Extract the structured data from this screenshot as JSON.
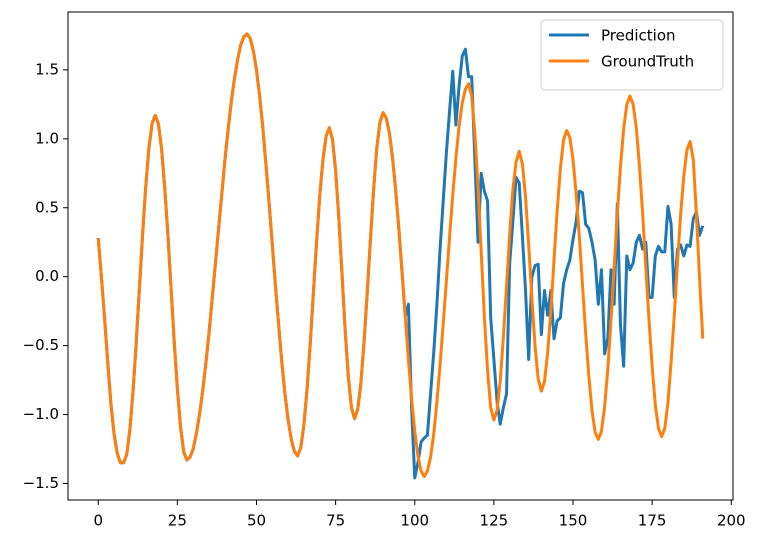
{
  "chart_data": {
    "type": "line",
    "x": [
      0,
      1,
      2,
      3,
      4,
      5,
      6,
      7,
      8,
      9,
      10,
      11,
      12,
      13,
      14,
      15,
      16,
      17,
      18,
      19,
      20,
      21,
      22,
      23,
      24,
      25,
      26,
      27,
      28,
      29,
      30,
      31,
      32,
      33,
      34,
      35,
      36,
      37,
      38,
      39,
      40,
      41,
      42,
      43,
      44,
      45,
      46,
      47,
      48,
      49,
      50,
      51,
      52,
      53,
      54,
      55,
      56,
      57,
      58,
      59,
      60,
      61,
      62,
      63,
      64,
      65,
      66,
      67,
      68,
      69,
      70,
      71,
      72,
      73,
      74,
      75,
      76,
      77,
      78,
      79,
      80,
      81,
      82,
      83,
      84,
      85,
      86,
      87,
      88,
      89,
      90,
      91,
      92,
      93,
      94,
      95,
      96,
      97,
      98,
      99,
      100,
      101,
      102,
      103,
      104,
      105,
      106,
      107,
      108,
      109,
      110,
      111,
      112,
      113,
      114,
      115,
      116,
      117,
      118,
      119,
      120,
      121,
      122,
      123,
      124,
      125,
      126,
      127,
      128,
      129,
      130,
      131,
      132,
      133,
      134,
      135,
      136,
      137,
      138,
      139,
      140,
      141,
      142,
      143,
      144,
      145,
      146,
      147,
      148,
      149,
      150,
      151,
      152,
      153,
      154,
      155,
      156,
      157,
      158,
      159,
      160,
      161,
      162,
      163,
      164,
      165,
      166,
      167,
      168,
      169,
      170,
      171,
      172,
      173,
      174,
      175,
      176,
      177,
      178,
      179,
      180,
      181,
      182,
      183,
      184,
      185,
      186,
      187,
      188,
      189,
      190,
      191
    ],
    "series": [
      {
        "name": "Prediction",
        "color": "#1f77b4",
        "values": [
          0.28,
          0.0,
          -0.3,
          -0.62,
          -0.92,
          -1.14,
          -1.28,
          -1.35,
          -1.35,
          -1.29,
          -1.11,
          -0.83,
          -0.48,
          -0.09,
          0.3,
          0.65,
          0.93,
          1.11,
          1.17,
          1.11,
          0.93,
          0.65,
          0.31,
          -0.08,
          -0.47,
          -0.81,
          -1.09,
          -1.27,
          -1.33,
          -1.31,
          -1.25,
          -1.14,
          -1.0,
          -0.83,
          -0.63,
          -0.41,
          -0.16,
          0.09,
          0.34,
          0.59,
          0.84,
          1.06,
          1.26,
          1.43,
          1.57,
          1.68,
          1.74,
          1.76,
          1.73,
          1.64,
          1.5,
          1.31,
          1.08,
          0.81,
          0.53,
          0.23,
          -0.07,
          -0.35,
          -0.62,
          -0.85,
          -1.04,
          -1.18,
          -1.27,
          -1.3,
          -1.24,
          -1.07,
          -0.81,
          -0.48,
          -0.11,
          0.26,
          0.59,
          0.85,
          1.02,
          1.08,
          1.0,
          0.77,
          0.43,
          0.03,
          -0.38,
          -0.72,
          -0.95,
          -1.03,
          -0.96,
          -0.77,
          -0.47,
          -0.11,
          0.27,
          0.63,
          0.93,
          1.12,
          1.19,
          1.15,
          1.04,
          0.86,
          0.62,
          0.34,
          0.03,
          -0.29,
          -0.2,
          -0.95,
          -1.46,
          -1.35,
          -1.2,
          -1.17,
          -1.15,
          -0.85,
          -0.55,
          -0.2,
          0.2,
          0.55,
          0.9,
          1.2,
          1.49,
          1.1,
          1.38,
          1.6,
          1.65,
          1.45,
          1.45,
          0.85,
          0.25,
          0.75,
          0.62,
          0.55,
          -0.3,
          -0.6,
          -0.9,
          -1.07,
          -0.95,
          -0.85,
          0.1,
          0.4,
          0.72,
          0.68,
          0.3,
          -0.1,
          -0.6,
          0,
          0.08,
          0.09,
          -0.42,
          -0.1,
          -0.28,
          -0.1,
          -0.45,
          -0.32,
          -0.3,
          -0.05,
          0.05,
          0.12,
          0.27,
          0.4,
          0.62,
          0.61,
          0.38,
          0.35,
          0.25,
          0.12,
          -0.2,
          0.05,
          -0.56,
          -0.45,
          0.05,
          -0.2,
          0.53,
          -0.35,
          -0.65,
          0.15,
          0.05,
          0.1,
          0.25,
          0.3,
          0.2,
          0.25,
          -0.15,
          -0.15,
          0.15,
          0.22,
          0.18,
          0.18,
          0.51,
          0.38,
          -0.15,
          0.2,
          0.23,
          0.15,
          0.23,
          0.22,
          0.42,
          0.47,
          0.3,
          0.37
        ]
      },
      {
        "name": "GroundTruth",
        "color": "#ff7f0e",
        "values": [
          0.28,
          0.0,
          -0.3,
          -0.62,
          -0.92,
          -1.14,
          -1.28,
          -1.35,
          -1.35,
          -1.29,
          -1.11,
          -0.83,
          -0.48,
          -0.09,
          0.3,
          0.65,
          0.93,
          1.11,
          1.17,
          1.11,
          0.93,
          0.65,
          0.31,
          -0.08,
          -0.47,
          -0.81,
          -1.09,
          -1.27,
          -1.33,
          -1.31,
          -1.25,
          -1.14,
          -1.0,
          -0.83,
          -0.63,
          -0.41,
          -0.16,
          0.09,
          0.34,
          0.59,
          0.84,
          1.06,
          1.26,
          1.43,
          1.57,
          1.68,
          1.74,
          1.76,
          1.73,
          1.64,
          1.5,
          1.31,
          1.08,
          0.81,
          0.53,
          0.23,
          -0.07,
          -0.35,
          -0.62,
          -0.85,
          -1.04,
          -1.18,
          -1.27,
          -1.3,
          -1.24,
          -1.07,
          -0.81,
          -0.48,
          -0.11,
          0.26,
          0.59,
          0.85,
          1.02,
          1.08,
          1.0,
          0.77,
          0.43,
          0.03,
          -0.38,
          -0.72,
          -0.95,
          -1.03,
          -0.96,
          -0.77,
          -0.47,
          -0.11,
          0.27,
          0.63,
          0.93,
          1.12,
          1.19,
          1.15,
          1.04,
          0.86,
          0.62,
          0.34,
          0.03,
          -0.29,
          -0.6,
          -0.88,
          -1.12,
          -1.3,
          -1.41,
          -1.45,
          -1.41,
          -1.31,
          -1.14,
          -0.91,
          -0.64,
          -0.34,
          -0.03,
          0.29,
          0.59,
          0.86,
          1.09,
          1.26,
          1.36,
          1.4,
          1.31,
          1.04,
          0.65,
          0.18,
          -0.29,
          -0.68,
          -0.95,
          -1.04,
          -0.97,
          -0.76,
          -0.44,
          -0.07,
          0.31,
          0.63,
          0.83,
          0.91,
          0.82,
          0.58,
          0.23,
          -0.15,
          -0.5,
          -0.74,
          -0.83,
          -0.76,
          -0.55,
          -0.25,
          0.12,
          0.48,
          0.78,
          0.99,
          1.06,
          1.01,
          0.85,
          0.6,
          0.29,
          -0.06,
          -0.41,
          -0.72,
          -0.97,
          -1.13,
          -1.18,
          -1.12,
          -0.94,
          -0.67,
          -0.32,
          0.07,
          0.45,
          0.8,
          1.07,
          1.25,
          1.31,
          1.25,
          1.08,
          0.8,
          0.46,
          0.07,
          -0.31,
          -0.65,
          -0.93,
          -1.1,
          -1.16,
          -1.1,
          -0.91,
          -0.62,
          -0.28,
          0.1,
          0.45,
          0.73,
          0.92,
          0.98,
          0.85,
          0.45,
          -0.02,
          -0.45
        ]
      }
    ],
    "xlim": [
      -9.55,
      200.55
    ],
    "xticks": [
      0,
      25,
      50,
      75,
      100,
      125,
      150,
      175,
      200
    ],
    "ylim": [
      -1.62,
      1.92
    ],
    "yticks": [
      {
        "value": -1.5,
        "label": "−1.5"
      },
      {
        "value": -1.0,
        "label": "−1.0"
      },
      {
        "value": -0.5,
        "label": "−0.5"
      },
      {
        "value": 0.0,
        "label": "0.0"
      },
      0.5,
      {
        "value": 1.0,
        "label": "1.0"
      },
      1.5
    ],
    "legend": "upper right",
    "grid": false
  }
}
